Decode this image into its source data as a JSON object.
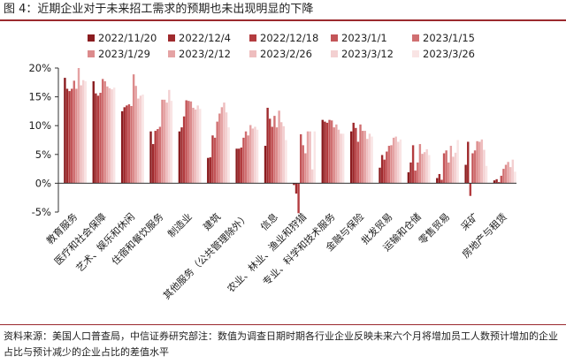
{
  "figure": {
    "title": "图 4：近期企业对于未来招工需求的预期也未出现明显的下降",
    "source": "资料来源：美国人口普查局，中信证券研究部注：数值为调查日期时期各行业企业反映未来六个月将增加员工人数预计增加的企业占比与预计减少的企业占比的差值水平"
  },
  "chart_data": {
    "type": "bar",
    "title": "",
    "xlabel": "",
    "ylabel": "",
    "ylim": [
      -5,
      20
    ],
    "yticks": [
      "-5%",
      "0%",
      "5%",
      "10%",
      "15%",
      "20%"
    ],
    "grid": false,
    "legend_position": "top",
    "categories": [
      "教育服务",
      "医疗和社会保障",
      "艺术、娱乐和休闲",
      "住宿和餐饮服务",
      "制造业",
      "建筑",
      "其他服务（公共管理除外）",
      "信息",
      "农业、林业、渔业和狩猎",
      "专业、科学和技术服务",
      "金融与保险",
      "批发贸易",
      "运输和仓储",
      "零售贸易",
      "采矿",
      "房地产与租赁"
    ],
    "series": [
      {
        "name": "2022/11/20",
        "color": "#8a1c1f",
        "values": [
          18.3,
          17.7,
          12.5,
          9.0,
          9.0,
          4.4,
          6.0,
          6.5,
          -0.3,
          11.0,
          9.0,
          2.7,
          1.9,
          0.9,
          3.2,
          0.5
        ]
      },
      {
        "name": "2022/12/4",
        "color": "#9f2a2d",
        "values": [
          16.4,
          15.6,
          13.2,
          6.8,
          9.7,
          4.5,
          6.0,
          13.1,
          -1.8,
          10.7,
          10.5,
          4.9,
          3.6,
          1.6,
          7.2,
          0.7
        ]
      },
      {
        "name": "2022/12/18",
        "color": "#b33c3f",
        "values": [
          16.0,
          15.2,
          13.5,
          9.1,
          11.6,
          8.3,
          6.2,
          11.2,
          -5.2,
          10.5,
          9.6,
          4.1,
          6.6,
          0.6,
          -2.2,
          0.2
        ]
      },
      {
        "name": "2023/1/1",
        "color": "#c35558",
        "values": [
          16.4,
          15.7,
          13.7,
          9.4,
          14.4,
          7.9,
          7.9,
          9.8,
          8.5,
          11.0,
          7.2,
          5.5,
          2.2,
          5.2,
          5.2,
          1.3
        ]
      },
      {
        "name": "2023/1/15",
        "color": "#d06f71",
        "values": [
          17.8,
          18.1,
          13.4,
          9.8,
          14.3,
          10.7,
          9.0,
          11.7,
          6.6,
          10.9,
          10.2,
          6.5,
          3.6,
          5.7,
          5.7,
          2.5
        ]
      },
      {
        "name": "2023/1/29",
        "color": "#dc8b8c",
        "values": [
          16.4,
          17.7,
          18.9,
          14.5,
          14.2,
          12.1,
          8.3,
          9.7,
          5.2,
          9.7,
          9.1,
          6.6,
          6.8,
          3.6,
          7.3,
          3.2
        ]
      },
      {
        "name": "2023/2/12",
        "color": "#e5a3a4",
        "values": [
          20.0,
          16.8,
          16.9,
          14.5,
          13.1,
          13.2,
          10.1,
          12.6,
          9.0,
          10.2,
          9.1,
          7.9,
          5.1,
          6.5,
          7.2,
          3.7
        ]
      },
      {
        "name": "2023/2/26",
        "color": "#eebdbe",
        "values": [
          17.0,
          16.5,
          14.7,
          14.0,
          12.8,
          14.0,
          9.5,
          10.6,
          9.0,
          9.3,
          7.7,
          8.1,
          5.4,
          4.6,
          7.6,
          2.8
        ]
      },
      {
        "name": "2023/3/12",
        "color": "#f3d0d1",
        "values": [
          17.9,
          16.3,
          15.2,
          16.2,
          13.5,
          12.3,
          9.8,
          9.9,
          2.4,
          8.6,
          8.6,
          7.2,
          5.9,
          5.3,
          5.8,
          4.1
        ]
      },
      {
        "name": "2023/3/26",
        "color": "#f9e4e4",
        "values": [
          17.7,
          16.6,
          15.4,
          14.3,
          12.9,
          9.7,
          9.3,
          7.5,
          9.0,
          8.6,
          8.1,
          7.6,
          4.9,
          7.5,
          3.0,
          2.0
        ]
      }
    ]
  }
}
